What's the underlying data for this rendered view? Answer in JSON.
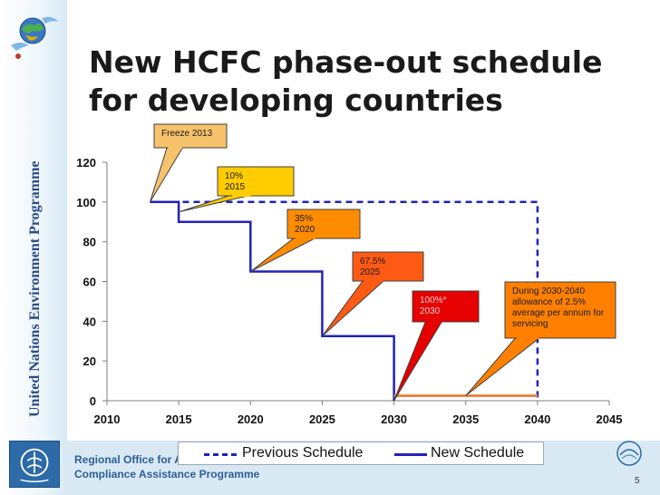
{
  "slide": {
    "title_line1": "New HCFC phase-out schedule",
    "title_line2": "for developing countries",
    "org_vertical": "United Nations Environment Programme",
    "footer_line1": "Regional Office for A",
    "footer_line2": "Compliance Assistance Programme",
    "page_number": "5"
  },
  "colors": {
    "previous": "#2222bb",
    "new": "#2222bb",
    "servicing": "#e8874a",
    "callout_freeze": "#f6c26b",
    "callout_10": "#ffcc00",
    "callout_35": "#ff8c00",
    "callout_675": "#ff5a14",
    "callout_100": "#e60000",
    "callout_service": "#ff8000"
  },
  "chart_data": {
    "type": "line",
    "xlim": [
      2010,
      2045
    ],
    "ylim": [
      0,
      120
    ],
    "x_ticks": [
      "2010",
      "2015",
      "2020",
      "2025",
      "2030",
      "2035",
      "2040",
      "2045"
    ],
    "y_ticks": [
      "0",
      "20",
      "40",
      "60",
      "80",
      "100",
      "120"
    ],
    "grid": false,
    "legend_position": "bottom",
    "series": [
      {
        "name": "Previous Schedule",
        "style": "dashed",
        "points": [
          [
            2013,
            100
          ],
          [
            2040,
            100
          ],
          [
            2040,
            0
          ]
        ]
      },
      {
        "name": "New Schedule",
        "style": "solid",
        "points": [
          [
            2013,
            100
          ],
          [
            2015,
            100
          ],
          [
            2015,
            90
          ],
          [
            2020,
            90
          ],
          [
            2020,
            65
          ],
          [
            2025,
            65
          ],
          [
            2025,
            32.5
          ],
          [
            2030,
            32.5
          ],
          [
            2030,
            0
          ]
        ]
      },
      {
        "style": "solid",
        "points": [
          [
            2030,
            2.5
          ],
          [
            2040,
            2.5
          ]
        ]
      }
    ],
    "annotations": [
      {
        "text": [
          "Freeze 2013"
        ],
        "target": [
          2013,
          100
        ],
        "fill": "#f6c26b"
      },
      {
        "text": [
          "10%",
          "2015"
        ],
        "target": [
          2015,
          95
        ],
        "fill": "#ffcc00"
      },
      {
        "text": [
          "35%",
          "2020"
        ],
        "target": [
          2020,
          65
        ],
        "fill": "#ff8c00"
      },
      {
        "text": [
          "67.5%",
          "2025"
        ],
        "target": [
          2025,
          32.5
        ],
        "fill": "#ff5a14"
      },
      {
        "text": [
          "100%*",
          "2030"
        ],
        "target": [
          2030,
          0
        ],
        "fill": "#e60000"
      },
      {
        "text": [
          "During 2030-2040",
          "allowance of 2.5%",
          "average per annum for",
          "servicing"
        ],
        "target": [
          2035,
          2.5
        ],
        "fill": "#ff8000"
      }
    ]
  }
}
